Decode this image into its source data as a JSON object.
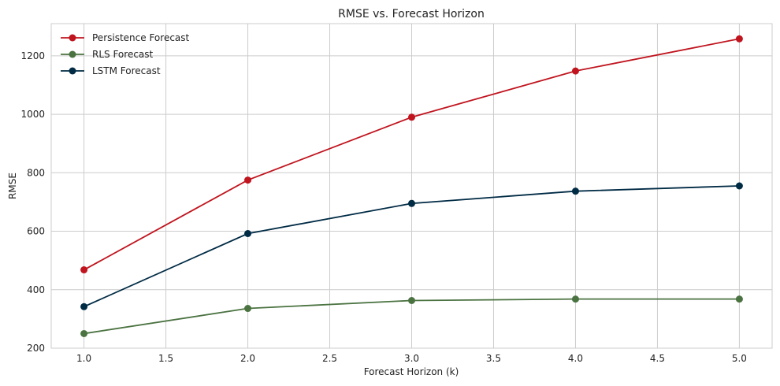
{
  "chart_data": {
    "type": "line",
    "title": "RMSE vs. Forecast Horizon",
    "xlabel": "Forecast Horizon (k)",
    "ylabel": "RMSE",
    "x": [
      1,
      2,
      3,
      4,
      5
    ],
    "xlim": [
      0.8,
      5.2
    ],
    "ylim": [
      200,
      1310
    ],
    "xticks": [
      1.0,
      1.5,
      2.0,
      2.5,
      3.0,
      3.5,
      4.0,
      4.5,
      5.0
    ],
    "xtick_labels": [
      "1.0",
      "1.5",
      "2.0",
      "2.5",
      "3.0",
      "3.5",
      "4.0",
      "4.5",
      "5.0"
    ],
    "yticks": [
      200,
      400,
      600,
      800,
      1000,
      1200
    ],
    "ytick_labels": [
      "200",
      "400",
      "600",
      "800",
      "1000",
      "1200"
    ],
    "grid": true,
    "legend_position": "top-left",
    "series": [
      {
        "name": "Persistence Forecast",
        "color": "#c0141e",
        "marker": "circle",
        "values": [
          468,
          775,
          990,
          1148,
          1258
        ]
      },
      {
        "name": "RLS Forecast",
        "color": "#4b7341",
        "marker": "circle",
        "values": [
          250,
          336,
          363,
          368,
          368
        ]
      },
      {
        "name": "LSTM Forecast",
        "color": "#002b45",
        "marker": "circle",
        "values": [
          342,
          592,
          695,
          737,
          755
        ]
      }
    ]
  }
}
